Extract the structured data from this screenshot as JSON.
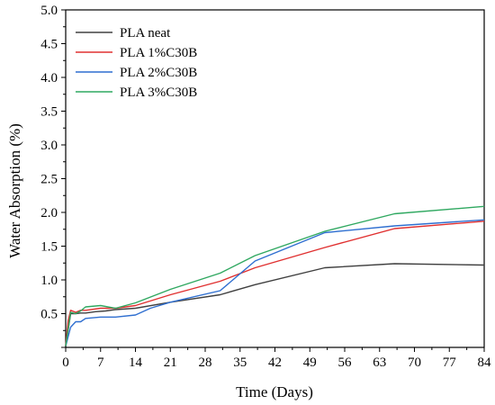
{
  "chart_data": {
    "type": "line",
    "xlabel": "Time (Days)",
    "ylabel": "Water Absorption (%)",
    "xlim": [
      0,
      84
    ],
    "ylim": [
      0,
      5.0
    ],
    "xticks": [
      0,
      7,
      14,
      21,
      28,
      35,
      42,
      49,
      56,
      63,
      70,
      77,
      84
    ],
    "xtick_labels": [
      "0",
      "7",
      "14",
      "21",
      "28",
      "35",
      "42",
      "49",
      "56",
      "63",
      "70",
      "77",
      "84"
    ],
    "yticks": [
      0.5,
      1.0,
      1.5,
      2.0,
      2.5,
      3.0,
      3.5,
      4.0,
      4.5,
      5.0
    ],
    "ytick_labels": [
      "0.5",
      "1.0",
      "1.5",
      "2.0",
      "2.5",
      "3.0",
      "3.5",
      "4.0",
      "4.5",
      "5.0"
    ],
    "grid": false,
    "legend_position": "top-left",
    "series": [
      {
        "name": "PLA neat",
        "color": "#404040",
        "x": [
          0,
          1,
          2,
          3,
          4,
          6,
          8,
          10,
          14,
          21,
          31,
          38,
          52,
          66,
          84
        ],
        "y": [
          0.02,
          0.5,
          0.5,
          0.51,
          0.51,
          0.53,
          0.54,
          0.56,
          0.58,
          0.67,
          0.78,
          0.93,
          1.18,
          1.24,
          1.22
        ]
      },
      {
        "name": "PLA 1%C30B",
        "color": "#e03030",
        "x": [
          0,
          0.5,
          1,
          2,
          3,
          4,
          7,
          10,
          14,
          21,
          31,
          38,
          52,
          66,
          84
        ],
        "y": [
          0.02,
          0.4,
          0.55,
          0.52,
          0.55,
          0.55,
          0.58,
          0.58,
          0.62,
          0.78,
          0.98,
          1.18,
          1.48,
          1.76,
          1.87
        ]
      },
      {
        "name": "PLA 2%C30B",
        "color": "#2f6fd0",
        "x": [
          0,
          1,
          2,
          3,
          4,
          7,
          10,
          14,
          17,
          21,
          31,
          38,
          52,
          66,
          84
        ],
        "y": [
          0.02,
          0.3,
          0.38,
          0.38,
          0.43,
          0.45,
          0.45,
          0.48,
          0.58,
          0.67,
          0.84,
          1.28,
          1.7,
          1.8,
          1.89
        ]
      },
      {
        "name": "PLA 3%C30B",
        "color": "#2fa860",
        "x": [
          0,
          1,
          2,
          3,
          4,
          7,
          10,
          14,
          21,
          31,
          38,
          52,
          66,
          84
        ],
        "y": [
          0.02,
          0.52,
          0.5,
          0.54,
          0.6,
          0.62,
          0.58,
          0.66,
          0.86,
          1.1,
          1.36,
          1.72,
          1.98,
          2.09
        ]
      }
    ]
  }
}
